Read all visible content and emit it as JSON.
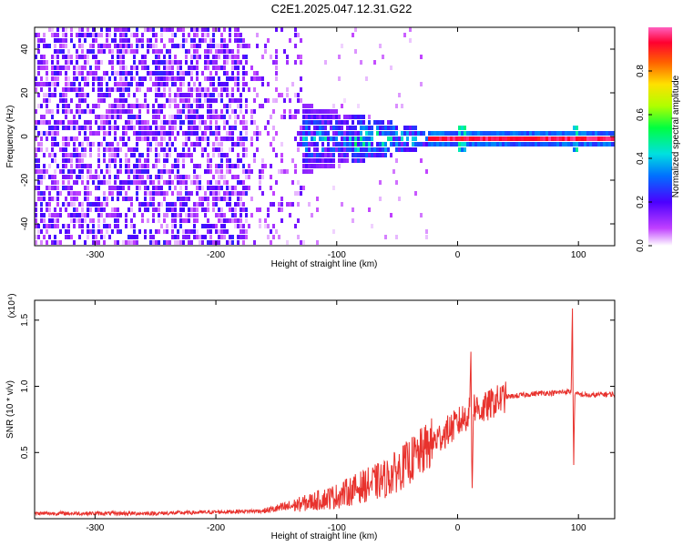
{
  "title": "C2E1.2025.047.12.31.G22",
  "chart_data": [
    {
      "type": "heatmap",
      "xlabel": "Height of straight line (km)",
      "ylabel": "Frequency (Hz)",
      "xlim": [
        -350,
        130
      ],
      "ylim": [
        -50,
        50
      ],
      "x_ticks": [
        -300,
        -200,
        -100,
        0,
        100
      ],
      "y_ticks": [
        -40,
        -20,
        0,
        20,
        40
      ],
      "x_tick_labels": [
        "-300",
        "-200",
        "-100",
        "0",
        "100"
      ],
      "y_tick_labels": [
        "-40",
        "-20",
        "0",
        "20",
        "40"
      ],
      "colorbar": {
        "label": "Normalized spectral amplitude",
        "range": [
          0.0,
          1.0
        ],
        "ticks": [
          0.0,
          0.2,
          0.4,
          0.6,
          0.8
        ],
        "tick_labels": [
          "0.0",
          "0.2",
          "0.4",
          "0.6",
          "0.8"
        ]
      },
      "regions": [
        {
          "x_range": [
            -350,
            -175
          ],
          "f_spread": 50,
          "amplitude": 0.18
        },
        {
          "x_range": [
            -175,
            -130
          ],
          "f_spread": 50,
          "amplitude": 0.08
        },
        {
          "x_range": [
            -130,
            -25
          ],
          "f_spread": 12,
          "amplitude": 0.35
        },
        {
          "x_range": [
            -25,
            130
          ],
          "f_center": 0,
          "amplitude": 0.95
        }
      ],
      "grid": false
    },
    {
      "type": "line",
      "xlabel": "Height of straight line (km)",
      "ylabel": "SNR (10 * v/v)",
      "y_multiplier_label": "(x10⁴)",
      "xlim": [
        -350,
        130
      ],
      "ylim": [
        0,
        1.65
      ],
      "x_ticks": [
        -300,
        -200,
        -100,
        0,
        100
      ],
      "y_ticks": [
        0.5,
        1.0,
        1.5
      ],
      "x_tick_labels": [
        "-300",
        "-200",
        "-100",
        "0",
        "100"
      ],
      "y_tick_labels": [
        "0.5",
        "1.0",
        "1.5"
      ],
      "color": "#e8322d",
      "series": [
        {
          "x": [
            -350,
            -300,
            -250,
            -200,
            -160,
            -140,
            -120,
            -100,
            -80,
            -60,
            -50,
            -40,
            -30,
            -20,
            -10,
            0,
            10,
            11,
            12,
            13,
            20,
            30,
            40,
            50,
            60,
            70,
            80,
            90,
            94,
            95,
            96,
            97,
            98,
            100,
            110,
            120,
            130
          ],
          "y": [
            0.04,
            0.04,
            0.04,
            0.05,
            0.06,
            0.09,
            0.13,
            0.17,
            0.24,
            0.3,
            0.36,
            0.43,
            0.5,
            0.58,
            0.65,
            0.72,
            0.8,
            1.35,
            0.15,
            0.85,
            0.82,
            0.88,
            0.92,
            0.93,
            0.94,
            0.95,
            0.95,
            0.96,
            0.96,
            1.62,
            0.38,
            0.95,
            0.94,
            0.94,
            0.93,
            0.94,
            0.94
          ]
        }
      ],
      "grid": false
    }
  ]
}
